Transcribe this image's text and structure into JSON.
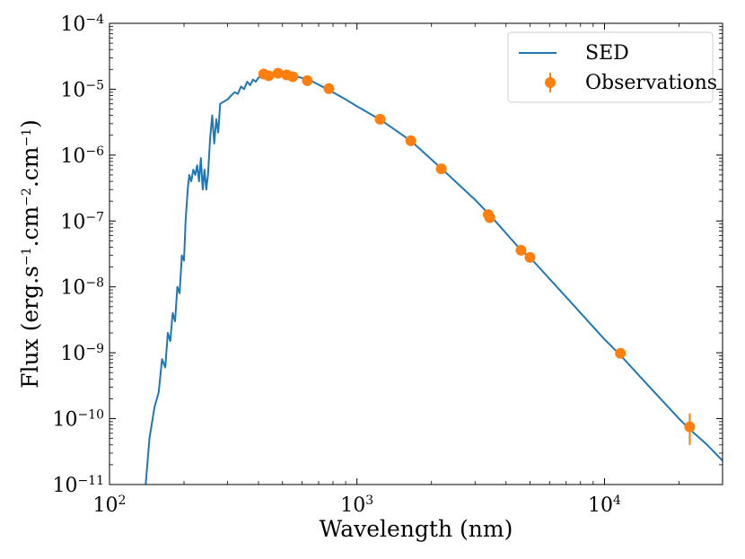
{
  "chart_data": {
    "type": "line",
    "xscale": "log",
    "yscale": "log",
    "xlim": [
      100,
      30000
    ],
    "ylim": [
      1e-11,
      0.0001
    ],
    "xlabel": "Wavelength (nm)",
    "ylabel": {
      "base": "Flux (erg.s",
      "s_exp": "−1",
      "mid": ".cm",
      "cm2_exp": "−2",
      "mid2": ".cm",
      "cm_exp": "−1",
      "end": ")"
    },
    "xticks": [
      {
        "value": 100,
        "base": "10",
        "exp": "2"
      },
      {
        "value": 1000,
        "base": "10",
        "exp": "3"
      },
      {
        "value": 10000,
        "base": "10",
        "exp": "4"
      }
    ],
    "yticks": [
      {
        "value": 1e-11,
        "base": "10",
        "exp": "−11"
      },
      {
        "value": 1e-10,
        "base": "10",
        "exp": "−10"
      },
      {
        "value": 1e-09,
        "base": "10",
        "exp": "−9"
      },
      {
        "value": 1e-08,
        "base": "10",
        "exp": "−8"
      },
      {
        "value": 1e-07,
        "base": "10",
        "exp": "−7"
      },
      {
        "value": 1e-06,
        "base": "10",
        "exp": "−6"
      },
      {
        "value": 1e-05,
        "base": "10",
        "exp": "−5"
      },
      {
        "value": 0.0001,
        "base": "10",
        "exp": "−4"
      }
    ],
    "legend": {
      "position": "top-right",
      "entries": [
        "SED",
        "Observations"
      ]
    },
    "series": [
      {
        "name": "SED",
        "kind": "line",
        "color": "#1f77b4",
        "points": [
          [
            140,
            1e-11
          ],
          [
            145,
            5e-11
          ],
          [
            152,
            1.5e-10
          ],
          [
            158,
            2.5e-10
          ],
          [
            163,
            8e-10
          ],
          [
            168,
            6e-10
          ],
          [
            172,
            2e-09
          ],
          [
            176,
            1.5e-09
          ],
          [
            180,
            4e-09
          ],
          [
            184,
            3e-09
          ],
          [
            188,
            1e-08
          ],
          [
            192,
            8e-09
          ],
          [
            196,
            3e-08
          ],
          [
            200,
            2.5e-08
          ],
          [
            203,
            1e-07
          ],
          [
            207,
            3e-07
          ],
          [
            210,
            5e-07
          ],
          [
            214,
            4e-07
          ],
          [
            218,
            6e-07
          ],
          [
            222,
            5e-07
          ],
          [
            226,
            7e-07
          ],
          [
            230,
            4e-07
          ],
          [
            234,
            9e-07
          ],
          [
            238,
            3e-07
          ],
          [
            242,
            6e-07
          ],
          [
            246,
            3e-07
          ],
          [
            250,
            5e-07
          ],
          [
            255,
            1.8e-06
          ],
          [
            260,
            4e-06
          ],
          [
            265,
            1.5e-06
          ],
          [
            270,
            3.5e-06
          ],
          [
            275,
            2.2e-06
          ],
          [
            280,
            6e-06
          ],
          [
            290,
            6.5e-06
          ],
          [
            300,
            7e-06
          ],
          [
            310,
            8e-06
          ],
          [
            320,
            9e-06
          ],
          [
            330,
            8.5e-06
          ],
          [
            340,
            1.1e-05
          ],
          [
            350,
            1e-05
          ],
          [
            360,
            1.3e-05
          ],
          [
            370,
            1.15e-05
          ],
          [
            380,
            1.4e-05
          ],
          [
            390,
            1.3e-05
          ],
          [
            400,
            1.5e-05
          ],
          [
            420,
            1.6e-05
          ],
          [
            450,
            1.68e-05
          ],
          [
            500,
            1.7e-05
          ],
          [
            560,
            1.6e-05
          ],
          [
            650,
            1.35e-05
          ],
          [
            760,
            1e-05
          ],
          [
            900,
            7e-06
          ],
          [
            1000,
            5.5e-06
          ],
          [
            1250,
            3.4e-06
          ],
          [
            1650,
            1.65e-06
          ],
          [
            2200,
            6.2e-07
          ],
          [
            3000,
            2.1e-07
          ],
          [
            3500,
            1.15e-07
          ],
          [
            4600,
            3.6e-08
          ],
          [
            5000,
            2.8e-08
          ],
          [
            7000,
            7e-09
          ],
          [
            10000,
            1.6e-09
          ],
          [
            11500,
            9.5e-10
          ],
          [
            15000,
            3.2e-10
          ],
          [
            20000,
            1e-10
          ],
          [
            22000,
            7e-11
          ],
          [
            26000,
            4e-11
          ],
          [
            30000,
            2.3e-11
          ]
        ]
      },
      {
        "name": "Observations",
        "kind": "scatter",
        "color": "#ff7f0e",
        "points": [
          [
            420,
            1.7e-05
          ],
          [
            440,
            1.6e-05
          ],
          [
            480,
            1.75e-05
          ],
          [
            520,
            1.65e-05
          ],
          [
            550,
            1.55e-05
          ],
          [
            630,
            1.35e-05
          ],
          [
            770,
            1.02e-05
          ],
          [
            1240,
            3.5e-06
          ],
          [
            1650,
            1.65e-06
          ],
          [
            2190,
            6.2e-07
          ],
          [
            3390,
            1.25e-07
          ],
          [
            3440,
            1.12e-07
          ],
          [
            4600,
            3.6e-08
          ],
          [
            5000,
            2.8e-08
          ],
          [
            11600,
            9.8e-10
          ],
          [
            22100,
            7.5e-11
          ]
        ],
        "errors": [
          [
            22100,
            4e-11,
            1.2e-10
          ]
        ]
      }
    ]
  }
}
